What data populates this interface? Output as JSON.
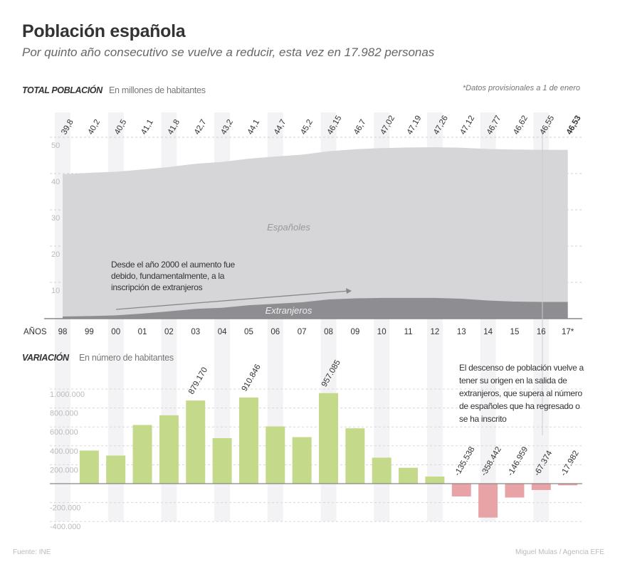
{
  "header": {
    "title": "Población española",
    "subtitle": "Por quinto año consecutivo se vuelve a reducir, esta vez en 17.982 personas"
  },
  "footer": {
    "source": "Fuente: INE",
    "credit": "Miguel Mulas / Agencia EFE"
  },
  "chart_data": [
    {
      "type": "area",
      "stacked": true,
      "section_title": "TOTAL POBLACIÓN",
      "section_subtitle": "En millones de habitantes",
      "note": "*Datos provisionales a 1 de enero",
      "x_axis_title": "AÑOS",
      "categories": [
        "98",
        "99",
        "00",
        "01",
        "02",
        "03",
        "04",
        "05",
        "06",
        "07",
        "08",
        "09",
        "10",
        "11",
        "12",
        "13",
        "14",
        "15",
        "16",
        "17*"
      ],
      "total_labels": [
        "39,8",
        "40,2",
        "40,5",
        "41,1",
        "41,8",
        "42,7",
        "43,2",
        "44,1",
        "44,7",
        "45,2",
        "46,15",
        "46,7",
        "47,02",
        "47,19",
        "47,26",
        "47,12",
        "46,77",
        "46,62",
        "46,55",
        "46,53"
      ],
      "total": [
        39.8,
        40.2,
        40.5,
        41.1,
        41.8,
        42.7,
        43.2,
        44.1,
        44.7,
        45.2,
        46.15,
        46.7,
        47.02,
        47.19,
        47.26,
        47.12,
        46.77,
        46.62,
        46.55,
        46.53
      ],
      "series": [
        {
          "name": "Extranjeros",
          "values": [
            0.6,
            0.7,
            0.9,
            1.4,
            2.0,
            2.7,
            3.0,
            3.7,
            4.1,
            4.5,
            5.3,
            5.6,
            5.7,
            5.7,
            5.7,
            5.5,
            5.0,
            4.7,
            4.6,
            4.6
          ],
          "color": "#8e8e92"
        },
        {
          "name": "Españoles",
          "values": [
            39.2,
            39.5,
            39.6,
            39.7,
            39.8,
            40.0,
            40.2,
            40.4,
            40.6,
            40.7,
            40.85,
            41.1,
            41.32,
            41.49,
            41.56,
            41.62,
            41.77,
            41.92,
            41.95,
            41.93
          ],
          "color": "#d6d6d8"
        }
      ],
      "yticks": [
        "10",
        "20",
        "30",
        "40",
        "50"
      ],
      "ylim": [
        0,
        50
      ],
      "grid": true,
      "annotation": "Desde el año 2000 el aumento fue debido, fundamentalmente, a la inscripción de extranjeros"
    },
    {
      "type": "bar",
      "section_title": "VARIACIÓN",
      "section_subtitle": "En número de habitantes",
      "categories": [
        "99",
        "00",
        "01",
        "02",
        "03",
        "04",
        "05",
        "06",
        "07",
        "08",
        "09",
        "10",
        "11",
        "12",
        "13",
        "14",
        "15",
        "16",
        "17*"
      ],
      "values": [
        350000,
        297000,
        620000,
        723000,
        879170,
        481000,
        910846,
        605000,
        492000,
        957085,
        585000,
        275000,
        168000,
        75000,
        -135538,
        -358442,
        -146959,
        -67374,
        -17982
      ],
      "data_labels": [
        "",
        "",
        "",
        "",
        "879.170",
        "",
        "910.846",
        "",
        "",
        "957.085",
        "",
        "",
        "",
        "",
        "-135.538",
        "-358.442",
        "-146.959",
        "-67.374",
        "-17.982"
      ],
      "yticks": [
        "-400.000",
        "-200.000",
        "200.000",
        "400.000",
        "600.000",
        "800.000",
        "1.000.000"
      ],
      "ylim": [
        -400000,
        1000000
      ],
      "positive_color": "#c5d98a",
      "negative_color": "#e8a3a6",
      "grid": true,
      "annotation": "El descenso de población vuelve a tener su origen en la salida de extranjeros, que supera al número de españoles que ha regresado o se ha inscrito"
    }
  ]
}
